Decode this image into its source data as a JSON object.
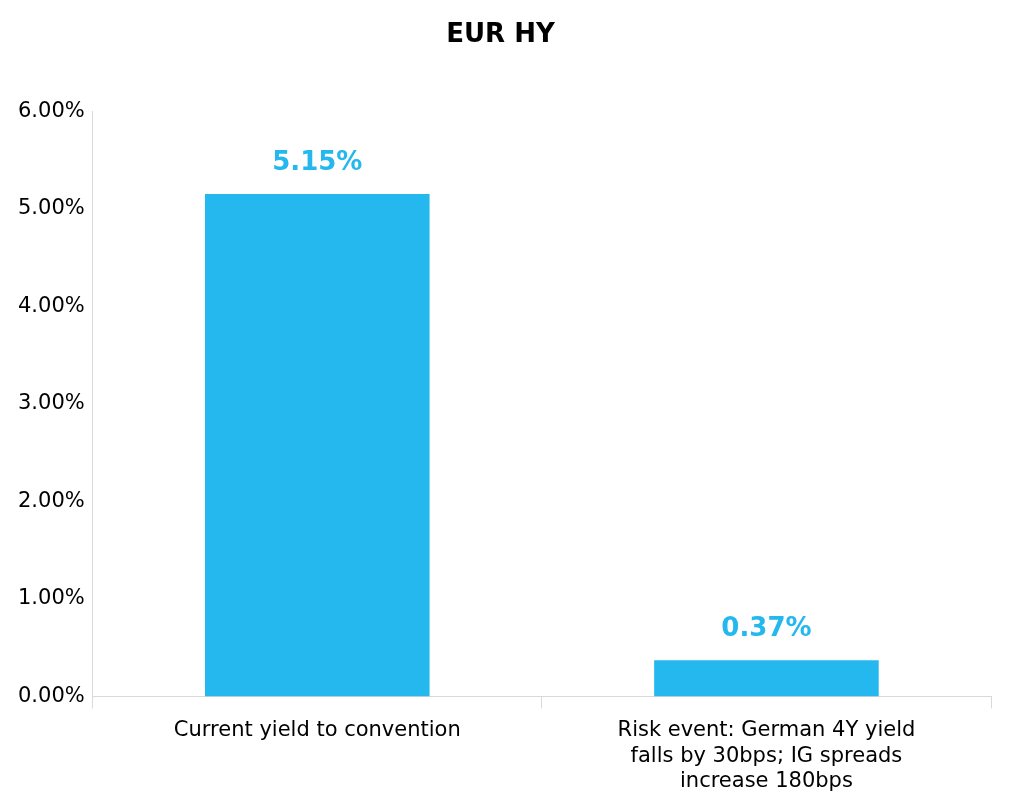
{
  "chart_data": {
    "type": "bar",
    "title": "EUR HY",
    "categories": [
      "Current yield to convention",
      "Risk event: German 4Y yield falls by 30bps; IG spreads increase 180bps"
    ],
    "values": [
      5.15,
      0.37
    ],
    "color": "#24b8ee",
    "value_labels": [
      "5.15%",
      "0.37%"
    ],
    "ylim": [
      0,
      6
    ],
    "yticks": [
      {
        "value": 0,
        "label": "0.00%"
      },
      {
        "value": 1,
        "label": "1.00%"
      },
      {
        "value": 2,
        "label": "2.00%"
      },
      {
        "value": 3,
        "label": "3.00%"
      },
      {
        "value": 4,
        "label": "4.00%"
      },
      {
        "value": 5,
        "label": "5.00%"
      },
      {
        "value": 6,
        "label": "6.00%"
      }
    ],
    "grid": false,
    "legend": false
  }
}
